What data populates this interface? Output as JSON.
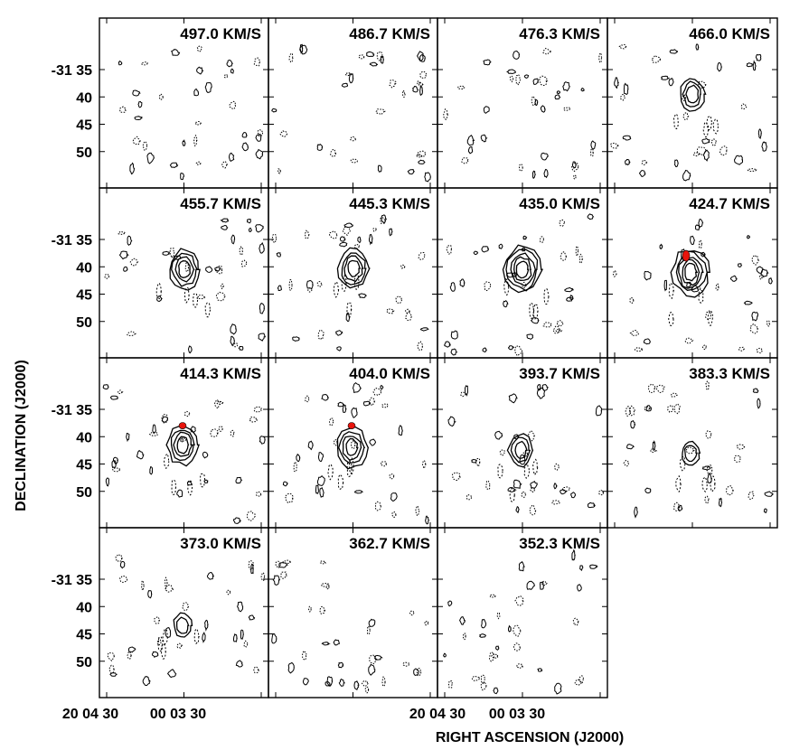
{
  "chart_data": {
    "type": "channel-map",
    "panels_velocity_kms": [
      497.0,
      486.7,
      476.3,
      466.0,
      455.7,
      445.3,
      435.0,
      424.7,
      414.3,
      404.0,
      393.7,
      383.3,
      373.0,
      362.7,
      352.3
    ],
    "panel_labels": [
      "497.0 KM/S",
      "486.7 KM/S",
      "476.3 KM/S",
      "466.0 KM/S",
      "455.7 KM/S",
      "445.3 KM/S",
      "435.0 KM/S",
      "424.7 KM/S",
      "414.3 KM/S",
      "404.0 KM/S",
      "393.7 KM/S",
      "383.3 KM/S",
      "373.0 KM/S",
      "362.7 KM/S",
      "352.3 KM/S"
    ],
    "grid": {
      "columns": 4,
      "rows": 4
    },
    "xlabel": "RIGHT ASCENSION (J2000)",
    "ylabel": "DECLINATION (J2000)",
    "y_tick_labels": [
      "-31 35",
      "40",
      "45",
      "50"
    ],
    "y_ticks_arcmin": [
      35,
      40,
      45,
      50
    ],
    "x_tick_labels_bottom_left": [
      "20 04 30",
      "00",
      "03 30"
    ],
    "x_tick_labels_bottom_right": [
      "20 04 30",
      "00",
      "03 30"
    ],
    "emission_peak_dec_arcmin": [
      null,
      null,
      null,
      39.5,
      40.5,
      40.3,
      40.5,
      41.0,
      41.5,
      42.0,
      42.5,
      43.0,
      43.5,
      null,
      null
    ],
    "emission_levels": [
      0,
      0,
      0,
      3,
      4,
      4,
      5,
      5,
      4,
      4,
      3,
      2,
      2,
      0,
      0
    ],
    "red_component_panels": [
      "424.7 KM/S",
      "414.3 KM/S",
      "404.0 KM/S"
    ],
    "red_color": "#e8140c",
    "grid_lines": false,
    "legend": "none"
  }
}
